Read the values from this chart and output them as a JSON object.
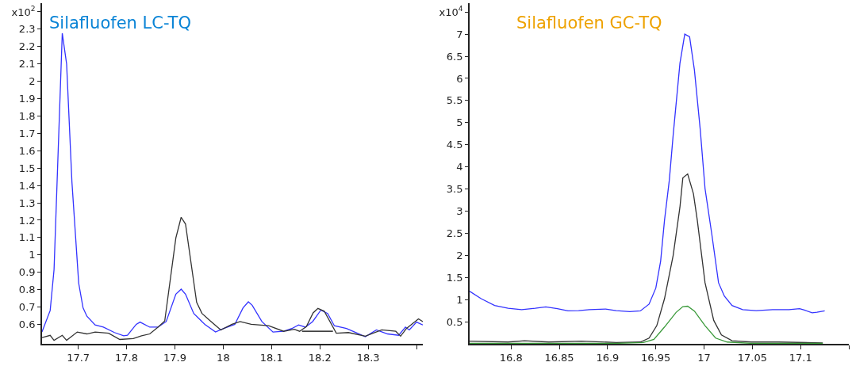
{
  "chart_data": [
    {
      "type": "line",
      "title": "Silafluofen LC-TQ",
      "xlim": [
        17.625,
        18.413
      ],
      "xticks": [
        17.7,
        17.8,
        17.9,
        18,
        18.1,
        18.2,
        18.3,
        {
          "value": 18.4,
          "label": null
        }
      ],
      "ylim": [
        0.488,
        2.45
      ],
      "yticks": [
        0.6,
        0.7,
        0.8,
        0.9,
        1,
        1.1,
        1.2,
        1.3,
        1.4,
        1.5,
        1.6,
        1.7,
        1.8,
        1.9,
        2,
        2.1,
        2.2,
        2.3,
        {
          "value": 2.4,
          "label": "x10$^{2}$"
        }
      ],
      "grid": false,
      "legend": false,
      "marker": "none",
      "line_style": "solid",
      "series": [
        {
          "color": "#3333ff",
          "x": [
            17.625,
            17.642,
            17.65,
            17.667,
            17.676,
            17.687,
            17.701,
            17.71,
            17.718,
            17.735,
            17.752,
            17.775,
            17.794,
            17.802,
            17.82,
            17.828,
            17.848,
            17.865,
            17.882,
            17.902,
            17.913,
            17.922,
            17.939,
            17.962,
            17.984,
            18.001,
            18.024,
            18.041,
            18.052,
            18.06,
            18.08,
            18.103,
            18.125,
            18.142,
            18.156,
            18.17,
            18.185,
            18.202,
            18.216,
            18.23,
            18.255,
            18.272,
            18.294,
            18.317,
            18.34,
            18.363,
            18.377,
            18.385,
            18.4,
            18.413
          ],
          "values": [
            0.556,
            0.68,
            0.916,
            2.277,
            2.1,
            1.42,
            0.837,
            0.695,
            0.647,
            0.597,
            0.584,
            0.553,
            0.534,
            0.537,
            0.6,
            0.613,
            0.584,
            0.584,
            0.616,
            0.774,
            0.803,
            0.774,
            0.663,
            0.6,
            0.556,
            0.576,
            0.6,
            0.695,
            0.73,
            0.71,
            0.616,
            0.556,
            0.56,
            0.576,
            0.597,
            0.584,
            0.616,
            0.682,
            0.663,
            0.592,
            0.576,
            0.556,
            0.529,
            0.568,
            0.545,
            0.537,
            0.584,
            0.568,
            0.613,
            0.597
          ]
        },
        {
          "color": "#333333",
          "x": [
            17.625,
            17.642,
            17.65,
            17.667,
            17.676,
            17.698,
            17.718,
            17.735,
            17.763,
            17.786,
            17.814,
            17.831,
            17.848,
            17.865,
            17.879,
            17.902,
            17.913,
            17.922,
            17.945,
            17.956,
            17.975,
            17.995,
            18.018,
            18.035,
            18.058,
            18.094,
            18.125,
            18.147,
            18.158,
            18.172,
            18.186,
            18.196,
            18.209,
            18.234,
            18.259,
            18.294,
            18.328,
            18.357,
            18.367,
            18.379,
            18.404,
            18.413
          ],
          "values": [
            0.524,
            0.537,
            0.508,
            0.537,
            0.508,
            0.556,
            0.545,
            0.556,
            0.549,
            0.513,
            0.518,
            0.534,
            0.545,
            0.584,
            0.619,
            1.098,
            1.217,
            1.178,
            0.727,
            0.663,
            0.616,
            0.568,
            0.6,
            0.616,
            0.6,
            0.592,
            0.56,
            0.572,
            0.56,
            0.587,
            0.666,
            0.692,
            0.676,
            0.549,
            0.553,
            0.532,
            0.568,
            0.56,
            0.532,
            0.576,
            0.632,
            0.616
          ]
        },
        {
          "color": "#000000",
          "x": [
            18.163,
            18.227
          ],
          "values": [
            0.56,
            0.56
          ]
        }
      ]
    },
    {
      "type": "line",
      "title": "Silafluofen GC-TQ",
      "xlim": [
        16.757,
        17.15
      ],
      "xticks": [
        16.8,
        16.85,
        16.9,
        16.95,
        17,
        17.05,
        17.1,
        {
          "value": 17.15,
          "label": null
        }
      ],
      "ylim": [
        0,
        7.7
      ],
      "yticks": [
        0.5,
        1,
        1.5,
        2,
        2.5,
        3,
        3.5,
        4,
        4.5,
        5,
        5.5,
        6,
        6.5,
        7,
        {
          "value": 7.5,
          "label": "x10$^{4}$"
        }
      ],
      "grid": false,
      "legend": false,
      "marker": "none",
      "line_style": "solid",
      "series": [
        {
          "color": "#3333ff",
          "x": [
            16.757,
            16.769,
            16.783,
            16.797,
            16.811,
            16.825,
            16.836,
            16.848,
            16.859,
            16.87,
            16.881,
            16.898,
            16.909,
            16.923,
            16.934,
            16.943,
            16.95,
            16.955,
            16.959,
            16.964,
            16.968,
            16.975,
            16.98,
            16.985,
            16.99,
            16.996,
            17.001,
            17.008,
            17.015,
            17.021,
            17.029,
            17.04,
            17.054,
            17.071,
            17.088,
            17.099,
            17.104,
            17.112,
            17.117,
            17.125
          ],
          "values": [
            1.19,
            1.02,
            0.866,
            0.805,
            0.774,
            0.805,
            0.835,
            0.793,
            0.744,
            0.75,
            0.774,
            0.787,
            0.75,
            0.726,
            0.744,
            0.896,
            1.26,
            1.87,
            2.79,
            3.7,
            4.72,
            6.34,
            7.0,
            6.94,
            6.19,
            4.85,
            3.51,
            2.48,
            1.38,
            1.08,
            0.866,
            0.774,
            0.75,
            0.774,
            0.774,
            0.793,
            0.762,
            0.701,
            0.713,
            0.744
          ]
        },
        {
          "color": "#333333",
          "x": [
            16.757,
            16.797,
            16.814,
            16.839,
            16.873,
            16.909,
            16.934,
            16.943,
            16.951,
            16.959,
            16.968,
            16.975,
            16.978,
            16.983,
            16.989,
            16.993,
            17.001,
            17.01,
            17.018,
            17.029,
            17.049,
            17.077,
            17.123
          ],
          "values": [
            0.06,
            0.04,
            0.07,
            0.04,
            0.06,
            0.03,
            0.04,
            0.13,
            0.41,
            1.02,
            2.0,
            3.09,
            3.75,
            3.84,
            3.39,
            2.79,
            1.38,
            0.53,
            0.2,
            0.07,
            0.04,
            0.04,
            0.02
          ]
        },
        {
          "color": "#3a9a3a",
          "x": [
            16.757,
            16.909,
            16.937,
            16.948,
            16.959,
            16.971,
            16.978,
            16.983,
            16.99,
            17.001,
            17.012,
            17.024,
            17.049,
            17.123
          ],
          "values": [
            0.01,
            0.01,
            0.03,
            0.1,
            0.38,
            0.71,
            0.84,
            0.85,
            0.74,
            0.41,
            0.13,
            0.04,
            0.01,
            0.01
          ]
        }
      ]
    }
  ]
}
